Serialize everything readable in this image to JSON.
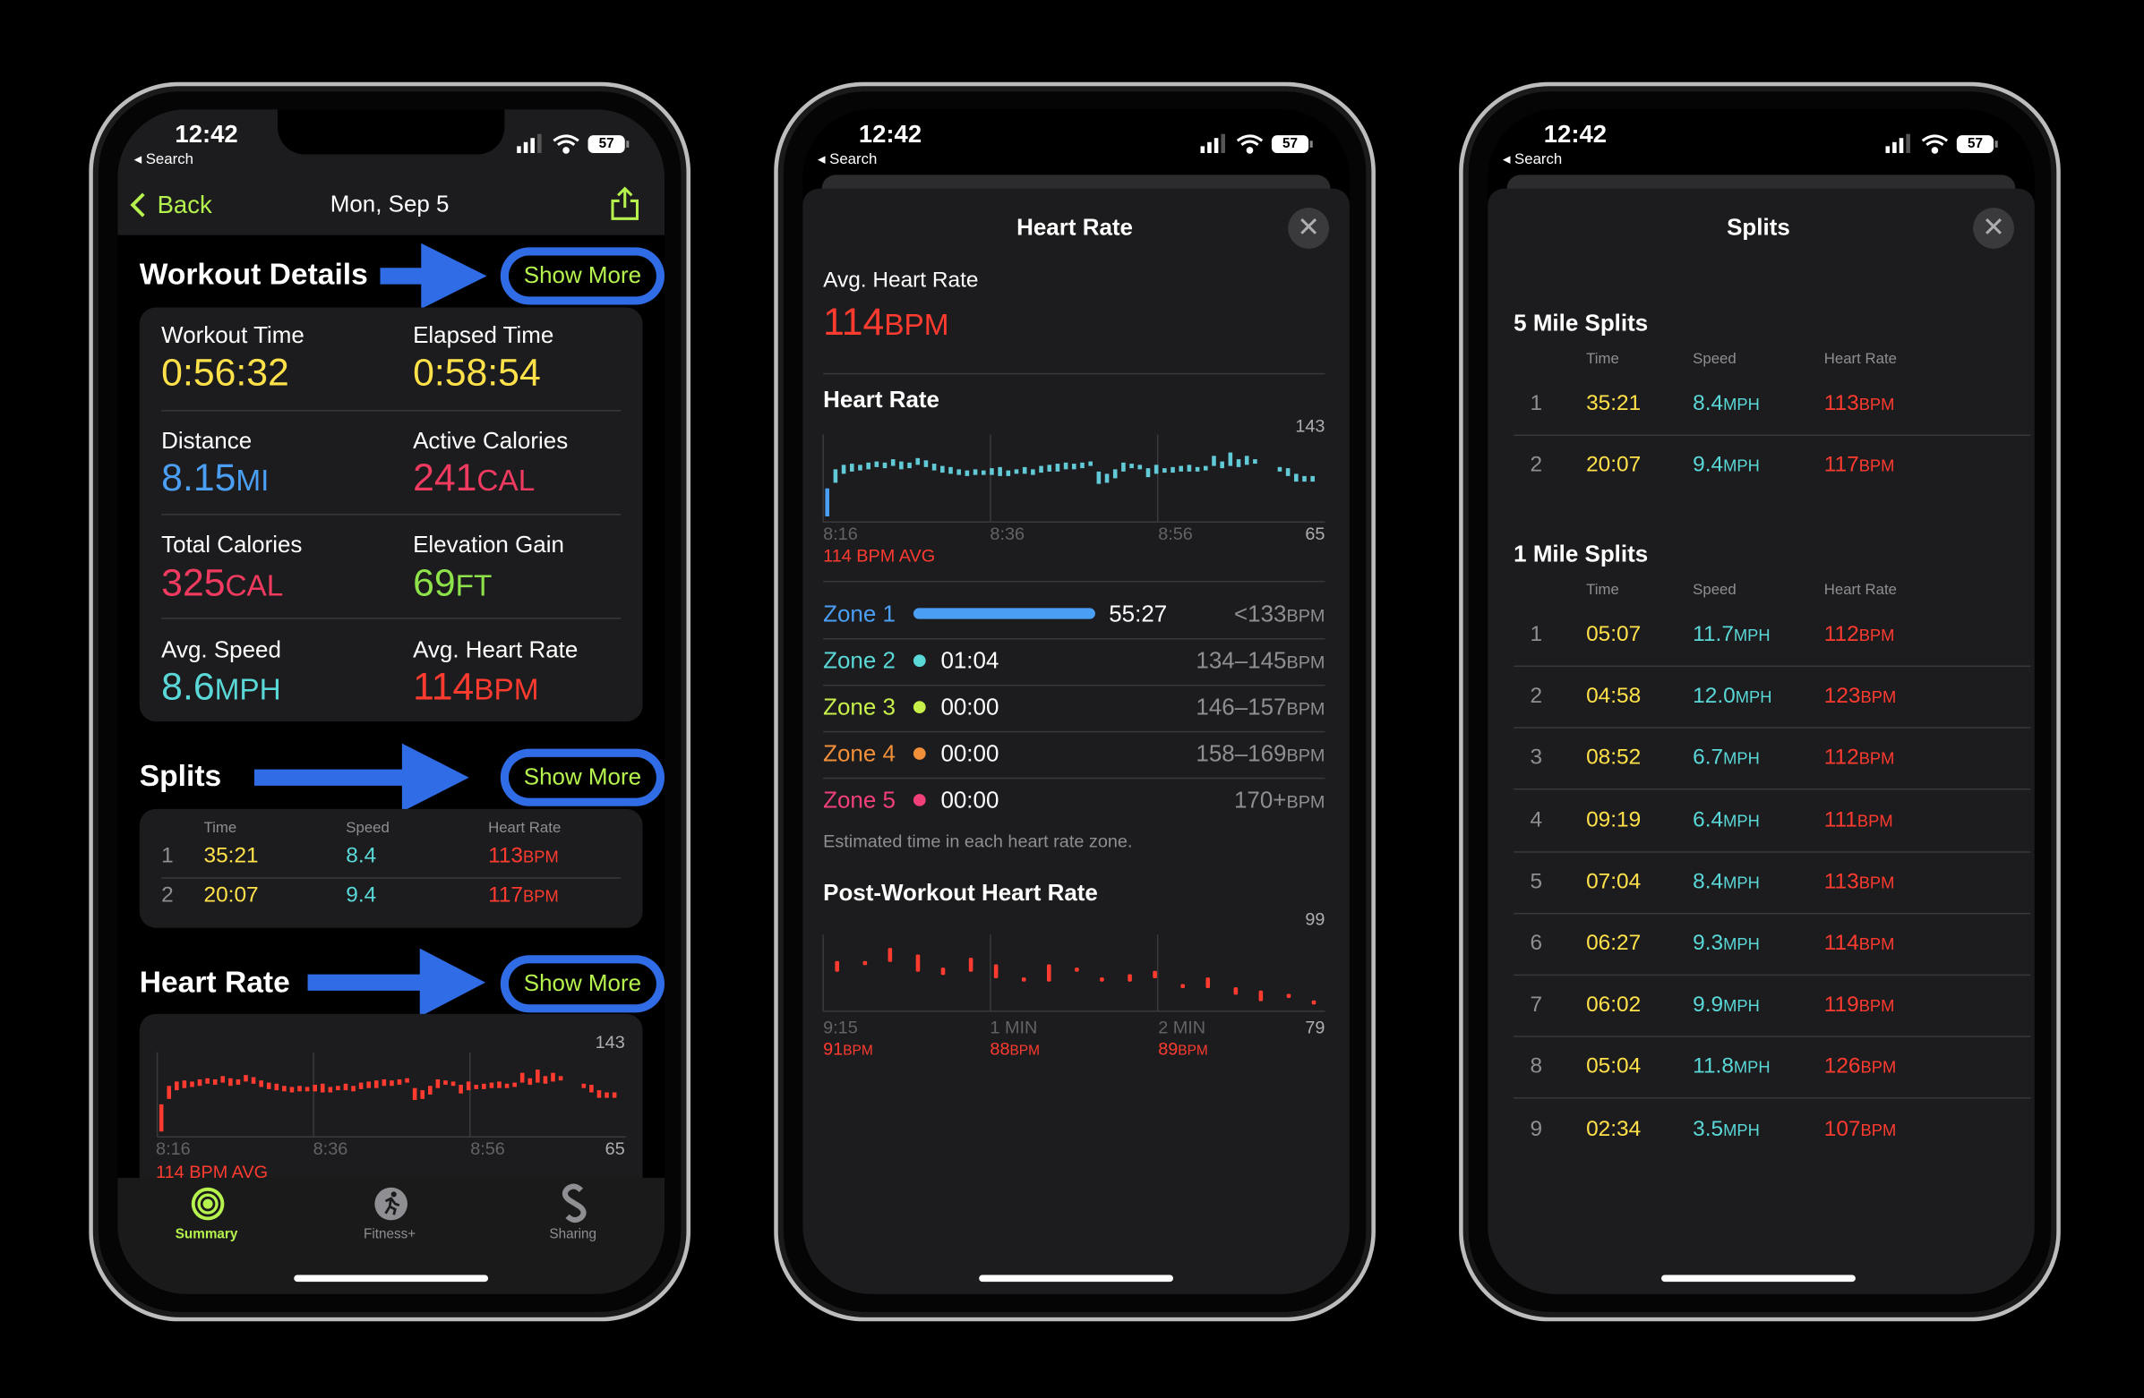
{
  "status_bar": {
    "time": "12:42",
    "back_app": "◂ Search",
    "battery": "57"
  },
  "colors": {
    "accent_green": "#b6f24e",
    "annotation_blue": "#2f6ce5",
    "heart_red": "#ff3b30",
    "yellow": "#ffe14a",
    "blue": "#4a9ff5",
    "cyan": "#5ad8d8",
    "pink": "#f03a5f",
    "green": "#8ee34a"
  },
  "summary": {
    "nav": {
      "back_label": "Back",
      "title": "Mon, Sep 5",
      "share_icon": "share-icon"
    },
    "workout_details": {
      "title": "Workout Details",
      "show_more": "Show More",
      "metrics": [
        {
          "label": "Workout Time",
          "value": "0:56:32",
          "unit": "",
          "color": "#ffe14a"
        },
        {
          "label": "Elapsed Time",
          "value": "0:58:54",
          "unit": "",
          "color": "#ffe14a"
        },
        {
          "label": "Distance",
          "value": "8.15",
          "unit": "MI",
          "color": "#4a9ff5"
        },
        {
          "label": "Active Calories",
          "value": "241",
          "unit": "CAL",
          "color": "#f03a5f"
        },
        {
          "label": "Total Calories",
          "value": "325",
          "unit": "CAL",
          "color": "#f03a5f"
        },
        {
          "label": "Elevation Gain",
          "value": "69",
          "unit": "FT",
          "color": "#8ee34a"
        },
        {
          "label": "Avg. Speed",
          "value": "8.6",
          "unit": "MPH",
          "color": "#5ad8d8"
        },
        {
          "label": "Avg. Heart Rate",
          "value": "114",
          "unit": "BPM",
          "color": "#ff3b30"
        }
      ]
    },
    "splits": {
      "title": "Splits",
      "show_more": "Show More",
      "headers": [
        "Time",
        "Speed",
        "Heart Rate"
      ],
      "rows": [
        {
          "n": "1",
          "time": "35:21",
          "speed": "8.4",
          "hr": "113",
          "hr_unit": "BPM"
        },
        {
          "n": "2",
          "time": "20:07",
          "speed": "9.4",
          "hr": "117",
          "hr_unit": "BPM"
        }
      ]
    },
    "heart_rate": {
      "title": "Heart Rate",
      "show_more": "Show More",
      "max_label": "143",
      "min_label": "65",
      "x_labels": [
        "8:16",
        "8:36",
        "8:56"
      ],
      "avg_label": "114 BPM AVG"
    },
    "tabs": [
      {
        "label": "Summary",
        "icon": "activity-rings-icon",
        "active": true
      },
      {
        "label": "Fitness+",
        "icon": "runner-icon",
        "active": false
      },
      {
        "label": "Sharing",
        "icon": "sharing-icon",
        "active": false
      }
    ]
  },
  "heart_rate_sheet": {
    "title": "Heart Rate",
    "avg_label": "Avg. Heart Rate",
    "avg_value": "114",
    "avg_unit": "BPM",
    "chart_title": "Heart Rate",
    "max_label": "143",
    "min_label": "65",
    "x_labels": [
      "8:16",
      "8:36",
      "8:56"
    ],
    "chart_avg": "114 BPM AVG",
    "zones": [
      {
        "name": "Zone 1",
        "time": "55:27",
        "range": "<133",
        "unit": "BPM",
        "color": "#4a9ff5",
        "fill_fraction": 0.98
      },
      {
        "name": "Zone 2",
        "time": "01:04",
        "range": "134–145",
        "unit": "BPM",
        "color": "#5ad8d8"
      },
      {
        "name": "Zone 3",
        "time": "00:00",
        "range": "146–157",
        "unit": "BPM",
        "color": "#c8f04a"
      },
      {
        "name": "Zone 4",
        "time": "00:00",
        "range": "158–169",
        "unit": "BPM",
        "color": "#f2903a"
      },
      {
        "name": "Zone 5",
        "time": "00:00",
        "range": "170+",
        "unit": "BPM",
        "color": "#f0407a"
      }
    ],
    "zones_note": "Estimated time in each heart rate zone.",
    "post_title": "Post-Workout Heart Rate",
    "post_max_label": "99",
    "post_min_label": "79",
    "post_x_labels": [
      "9:15",
      "1 MIN",
      "2 MIN"
    ],
    "post_values": [
      {
        "value": "91",
        "unit": "BPM"
      },
      {
        "value": "88",
        "unit": "BPM"
      },
      {
        "value": "89",
        "unit": "BPM"
      }
    ]
  },
  "splits_sheet": {
    "title": "Splits",
    "headers": [
      "Time",
      "Speed",
      "Heart Rate"
    ],
    "sections": [
      {
        "title": "5 Mile Splits",
        "rows": [
          {
            "n": "1",
            "time": "35:21",
            "speed": "8.4",
            "hr": "113"
          },
          {
            "n": "2",
            "time": "20:07",
            "speed": "9.4",
            "hr": "117"
          }
        ]
      },
      {
        "title": "1 Mile Splits",
        "rows": [
          {
            "n": "1",
            "time": "05:07",
            "speed": "11.7",
            "hr": "112"
          },
          {
            "n": "2",
            "time": "04:58",
            "speed": "12.0",
            "hr": "123"
          },
          {
            "n": "3",
            "time": "08:52",
            "speed": "6.7",
            "hr": "112"
          },
          {
            "n": "4",
            "time": "09:19",
            "speed": "6.4",
            "hr": "111"
          },
          {
            "n": "5",
            "time": "07:04",
            "speed": "8.4",
            "hr": "113"
          },
          {
            "n": "6",
            "time": "06:27",
            "speed": "9.3",
            "hr": "114"
          },
          {
            "n": "7",
            "time": "06:02",
            "speed": "9.9",
            "hr": "119"
          },
          {
            "n": "8",
            "time": "05:04",
            "speed": "11.8",
            "hr": "126"
          },
          {
            "n": "9",
            "time": "02:34",
            "speed": "3.5",
            "hr": "107"
          }
        ]
      }
    ],
    "speed_unit": "MPH",
    "hr_unit": "BPM"
  },
  "chart_data": [
    {
      "type": "bar",
      "title": "Heart Rate",
      "ylim": [
        65,
        143
      ],
      "x_range": [
        "8:16",
        "9:16"
      ],
      "x_tick_labels": [
        "8:16",
        "8:36",
        "8:56"
      ],
      "grid": true,
      "bars_bpm_range": [
        [
          "8:16",
          70,
          95
        ],
        [
          "8:17",
          100,
          112
        ],
        [
          "8:18",
          108,
          116
        ],
        [
          "8:19",
          110,
          117
        ],
        [
          "8:20",
          111,
          116
        ],
        [
          "8:21",
          112,
          118
        ],
        [
          "8:22",
          114,
          119
        ],
        [
          "8:23",
          113,
          118
        ],
        [
          "8:24",
          115,
          121
        ],
        [
          "8:25",
          112,
          119
        ],
        [
          "8:26",
          113,
          118
        ],
        [
          "8:27",
          116,
          122
        ],
        [
          "8:28",
          114,
          120
        ],
        [
          "8:29",
          111,
          117
        ],
        [
          "8:30",
          109,
          115
        ],
        [
          "8:31",
          108,
          114
        ],
        [
          "8:32",
          107,
          112
        ],
        [
          "8:33",
          106,
          111
        ],
        [
          "8:34",
          107,
          112
        ],
        [
          "8:35",
          107,
          111
        ],
        [
          "8:36",
          107,
          113
        ],
        [
          "8:37",
          106,
          114
        ],
        [
          "8:38",
          106,
          111
        ],
        [
          "8:39",
          108,
          112
        ],
        [
          "8:40",
          108,
          114
        ],
        [
          "8:41",
          107,
          112
        ],
        [
          "8:42",
          109,
          115
        ],
        [
          "8:43",
          110,
          116
        ],
        [
          "8:44",
          110,
          117
        ],
        [
          "8:45",
          112,
          118
        ],
        [
          "8:46",
          112,
          117
        ],
        [
          "8:47",
          113,
          118
        ],
        [
          "8:48",
          115,
          119
        ],
        [
          "8:49",
          99,
          110
        ],
        [
          "8:50",
          100,
          108
        ],
        [
          "8:51",
          104,
          112
        ],
        [
          "8:52",
          110,
          118
        ],
        [
          "8:53",
          113,
          117
        ],
        [
          "8:54",
          112,
          116
        ],
        [
          "8:55",
          105,
          113
        ],
        [
          "8:56",
          108,
          116
        ],
        [
          "8:57",
          109,
          113
        ],
        [
          "8:58",
          109,
          114
        ],
        [
          "8:59",
          110,
          115
        ],
        [
          "9:00",
          110,
          116
        ],
        [
          "9:01",
          110,
          114
        ],
        [
          "9:02",
          111,
          115
        ],
        [
          "9:03",
          115,
          124
        ],
        [
          "9:04",
          113,
          119
        ],
        [
          "9:05",
          115,
          127
        ],
        [
          "9:06",
          114,
          121
        ],
        [
          "9:07",
          116,
          124
        ],
        [
          "9:08",
          117,
          121
        ],
        [
          "9:11",
          110,
          114
        ],
        [
          "9:12",
          106,
          113
        ],
        [
          "9:13",
          101,
          108
        ],
        [
          "9:14",
          101,
          106
        ],
        [
          "9:15",
          101,
          106
        ]
      ],
      "average_bpm": 114
    },
    {
      "type": "bar",
      "title": "Post-Workout Heart Rate",
      "ylim": [
        79,
        99
      ],
      "x_unit": "seconds after 9:15",
      "xlim": [
        0,
        180
      ],
      "x_tick_labels": [
        "9:15",
        "1 MIN",
        "2 MIN"
      ],
      "grid": true,
      "bars_bpm_range": [
        [
          5,
          90,
          92
        ],
        [
          15,
          92,
          92
        ],
        [
          24,
          93,
          96
        ],
        [
          34,
          90,
          94
        ],
        [
          43,
          89,
          90
        ],
        [
          53,
          90,
          93
        ],
        [
          62,
          88,
          91
        ],
        [
          72,
          87,
          87
        ],
        [
          81,
          87,
          91
        ],
        [
          91,
          90,
          90
        ],
        [
          100,
          87,
          87
        ],
        [
          110,
          87,
          88
        ],
        [
          119,
          88,
          89
        ],
        [
          129,
          85,
          85
        ],
        [
          138,
          85,
          87
        ],
        [
          148,
          83,
          84
        ],
        [
          157,
          81,
          83
        ],
        [
          167,
          82,
          82
        ],
        [
          176,
          80,
          80
        ]
      ]
    }
  ]
}
